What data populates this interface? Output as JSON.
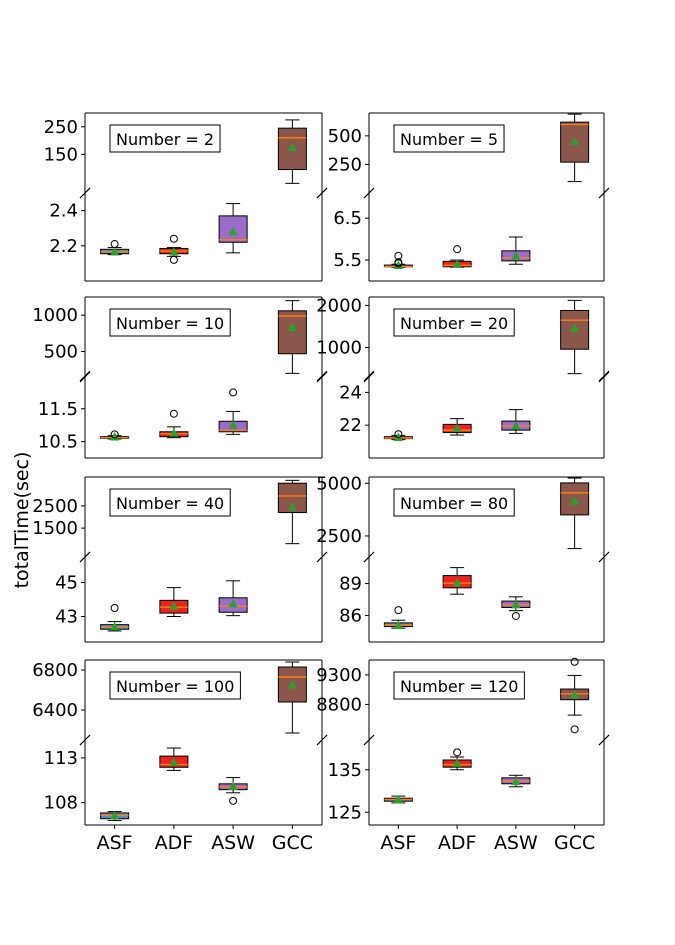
{
  "figure": {
    "ylabel": "totalTime(sec)",
    "categories": [
      "ASF",
      "ADF",
      "ASW",
      "GCC"
    ],
    "colors": {
      "ASF": "#5b8cc0",
      "ADF": "#e8251f",
      "ASW": "#9b6cc9",
      "GCC": "#8b564b",
      "median": "#ff7f0e",
      "mean": "#2ca02c"
    }
  },
  "chart_data": [
    {
      "type": "boxplot",
      "annotation": "Number = 2",
      "top": {
        "ylim": [
          10,
          300
        ],
        "yticks": [
          150,
          250
        ],
        "boxes": {
          "GCC": {
            "whislo": 45,
            "q1": 95,
            "med": 210,
            "q3": 245,
            "whishi": 275,
            "mean": 175,
            "fliers": []
          }
        }
      },
      "bottom": {
        "ylim": [
          2.0,
          2.5
        ],
        "yticks": [
          2.2,
          2.4
        ],
        "boxes": {
          "ASF": {
            "whislo": 2.15,
            "q1": 2.155,
            "med": 2.165,
            "q3": 2.18,
            "whishi": 2.19,
            "mean": 2.165,
            "fliers": [
              2.21
            ]
          },
          "ADF": {
            "whislo": 2.14,
            "q1": 2.155,
            "med": 2.17,
            "q3": 2.185,
            "whishi": 2.19,
            "mean": 2.165,
            "fliers": [
              2.24,
              2.12
            ]
          },
          "ASW": {
            "whislo": 2.16,
            "q1": 2.22,
            "med": 2.235,
            "q3": 2.37,
            "whishi": 2.44,
            "mean": 2.28,
            "fliers": []
          }
        }
      }
    },
    {
      "type": "boxplot",
      "annotation": "Number = 5",
      "top": {
        "ylim": [
          0,
          700
        ],
        "yticks": [
          250,
          500
        ],
        "boxes": {
          "GCC": {
            "whislo": 100,
            "q1": 270,
            "med": 600,
            "q3": 620,
            "whishi": 690,
            "mean": 450,
            "fliers": []
          }
        }
      },
      "bottom": {
        "ylim": [
          5.0,
          7.1
        ],
        "yticks": [
          5.5,
          6.5
        ],
        "boxes": {
          "ASF": {
            "whislo": 5.33,
            "q1": 5.34,
            "med": 5.35,
            "q3": 5.38,
            "whishi": 5.4,
            "mean": 5.37,
            "fliers": [
              5.6,
              5.45,
              5.42
            ]
          },
          "ADF": {
            "whislo": 5.33,
            "q1": 5.34,
            "med": 5.37,
            "q3": 5.47,
            "whishi": 5.5,
            "mean": 5.4,
            "fliers": [
              5.76
            ]
          },
          "ASW": {
            "whislo": 5.4,
            "q1": 5.48,
            "med": 5.55,
            "q3": 5.72,
            "whishi": 6.05,
            "mean": 5.6,
            "fliers": []
          }
        }
      }
    },
    {
      "type": "boxplot",
      "annotation": "Number = 10",
      "top": {
        "ylim": [
          150,
          1250
        ],
        "yticks": [
          500,
          1000
        ],
        "boxes": {
          "GCC": {
            "whislo": 200,
            "q1": 470,
            "med": 990,
            "q3": 1060,
            "whishi": 1200,
            "mean": 830,
            "fliers": []
          }
        }
      },
      "bottom": {
        "ylim": [
          10.0,
          12.5
        ],
        "yticks": [
          10.5,
          11.5
        ],
        "boxes": {
          "ASF": {
            "whislo": 10.58,
            "q1": 10.6,
            "med": 10.62,
            "q3": 10.65,
            "whishi": 10.68,
            "mean": 10.64,
            "fliers": [
              10.72
            ]
          },
          "ADF": {
            "whislo": 10.62,
            "q1": 10.65,
            "med": 10.74,
            "q3": 10.8,
            "whishi": 10.95,
            "mean": 10.76,
            "fliers": [
              11.35
            ]
          },
          "ASW": {
            "whislo": 10.72,
            "q1": 10.8,
            "med": 10.84,
            "q3": 11.12,
            "whishi": 11.42,
            "mean": 11.0,
            "fliers": [
              12.0
            ]
          }
        }
      }
    },
    {
      "type": "boxplot",
      "annotation": "Number = 20",
      "top": {
        "ylim": [
          300,
          2200
        ],
        "yticks": [
          1000,
          2000
        ],
        "boxes": {
          "GCC": {
            "whislo": 380,
            "q1": 960,
            "med": 1650,
            "q3": 1880,
            "whishi": 2120,
            "mean": 1450,
            "fliers": []
          }
        }
      },
      "bottom": {
        "ylim": [
          20.0,
          25.0
        ],
        "yticks": [
          22,
          24
        ],
        "boxes": {
          "ASF": {
            "whislo": 21.12,
            "q1": 21.18,
            "med": 21.22,
            "q3": 21.3,
            "whishi": 21.38,
            "mean": 21.25,
            "fliers": [
              21.45
            ]
          },
          "ADF": {
            "whislo": 21.4,
            "q1": 21.55,
            "med": 21.7,
            "q3": 22.05,
            "whishi": 22.4,
            "mean": 21.8,
            "fliers": []
          },
          "ASW": {
            "whislo": 21.5,
            "q1": 21.7,
            "med": 21.95,
            "q3": 22.25,
            "whishi": 22.95,
            "mean": 21.95,
            "fliers": []
          }
        }
      }
    },
    {
      "type": "boxplot",
      "annotation": "Number = 40",
      "top": {
        "ylim": [
          200,
          3800
        ],
        "yticks": [
          1500,
          2500
        ],
        "boxes": {
          "GCC": {
            "whislo": 800,
            "q1": 2200,
            "med": 2950,
            "q3": 3520,
            "whishi": 3650,
            "mean": 2450,
            "fliers": []
          }
        }
      },
      "bottom": {
        "ylim": [
          41.5,
          46.5
        ],
        "yticks": [
          43,
          45
        ],
        "boxes": {
          "ASF": {
            "whislo": 42.15,
            "q1": 42.25,
            "med": 42.38,
            "q3": 42.52,
            "whishi": 42.7,
            "mean": 42.38,
            "fliers": [
              43.5
            ]
          },
          "ADF": {
            "whislo": 43.0,
            "q1": 43.2,
            "med": 43.55,
            "q3": 43.95,
            "whishi": 44.7,
            "mean": 43.6,
            "fliers": []
          },
          "ASW": {
            "whislo": 43.05,
            "q1": 43.25,
            "med": 43.6,
            "q3": 44.1,
            "whishi": 45.1,
            "mean": 43.75,
            "fliers": []
          }
        }
      }
    },
    {
      "type": "boxplot",
      "annotation": "Number = 80",
      "top": {
        "ylim": [
          1500,
          5300
        ],
        "yticks": [
          2500,
          5000
        ],
        "boxes": {
          "GCC": {
            "whislo": 1900,
            "q1": 3500,
            "med": 4550,
            "q3": 5020,
            "whishi": 5250,
            "mean": 4150,
            "fliers": []
          }
        }
      },
      "bottom": {
        "ylim": [
          83.5,
          91.5
        ],
        "yticks": [
          86,
          89
        ],
        "boxes": {
          "ASF": {
            "whislo": 84.8,
            "q1": 84.95,
            "med": 85.1,
            "q3": 85.3,
            "whishi": 85.55,
            "mean": 85.05,
            "fliers": [
              86.5
            ]
          },
          "ADF": {
            "whislo": 88.0,
            "q1": 88.6,
            "med": 89.05,
            "q3": 89.75,
            "whishi": 90.5,
            "mean": 89.05,
            "fliers": []
          },
          "ASW": {
            "whislo": 86.45,
            "q1": 86.75,
            "med": 87.0,
            "q3": 87.35,
            "whishi": 87.75,
            "mean": 87.0,
            "fliers": [
              85.95
            ]
          }
        }
      }
    },
    {
      "type": "boxplot",
      "annotation": "Number = 100",
      "top": {
        "ylim": [
          6100,
          6900
        ],
        "yticks": [
          6400,
          6800
        ],
        "boxes": {
          "GCC": {
            "whislo": 6170,
            "q1": 6480,
            "med": 6730,
            "q3": 6830,
            "whishi": 6880,
            "mean": 6650,
            "fliers": []
          }
        }
      },
      "bottom": {
        "ylim": [
          105.5,
          115
        ],
        "yticks": [
          108,
          113
        ],
        "boxes": {
          "ASF": {
            "whislo": 106.0,
            "q1": 106.2,
            "med": 106.6,
            "q3": 106.85,
            "whishi": 107.0,
            "mean": 106.5,
            "fliers": []
          },
          "ADF": {
            "whislo": 111.6,
            "q1": 111.95,
            "med": 112.25,
            "q3": 113.2,
            "whishi": 114.1,
            "mean": 112.5,
            "fliers": []
          },
          "ASW": {
            "whislo": 109.1,
            "q1": 109.45,
            "med": 109.75,
            "q3": 110.1,
            "whishi": 110.8,
            "mean": 109.8,
            "fliers": [
              108.2
            ]
          }
        }
      }
    },
    {
      "type": "boxplot",
      "annotation": "Number = 120",
      "top": {
        "ylim": [
          8200,
          9550
        ],
        "yticks": [
          8800,
          9300
        ],
        "boxes": {
          "GCC": {
            "whislo": 8620,
            "q1": 8880,
            "med": 8980,
            "q3": 9060,
            "whishi": 9290,
            "mean": 8960,
            "fliers": [
              9520,
              8380
            ]
          }
        }
      },
      "bottom": {
        "ylim": [
          122,
          142
        ],
        "yticks": [
          125,
          135
        ],
        "boxes": {
          "ASF": {
            "whislo": 127.2,
            "q1": 127.6,
            "med": 128.0,
            "q3": 128.3,
            "whishi": 128.8,
            "mean": 127.9,
            "fliers": []
          },
          "ADF": {
            "whislo": 135.0,
            "q1": 135.6,
            "med": 136.2,
            "q3": 137.3,
            "whishi": 138.0,
            "mean": 136.5,
            "fliers": [
              139.1
            ]
          },
          "ASW": {
            "whislo": 131.0,
            "q1": 131.7,
            "med": 132.3,
            "q3": 133.1,
            "whishi": 133.7,
            "mean": 132.2,
            "fliers": []
          }
        }
      }
    }
  ]
}
